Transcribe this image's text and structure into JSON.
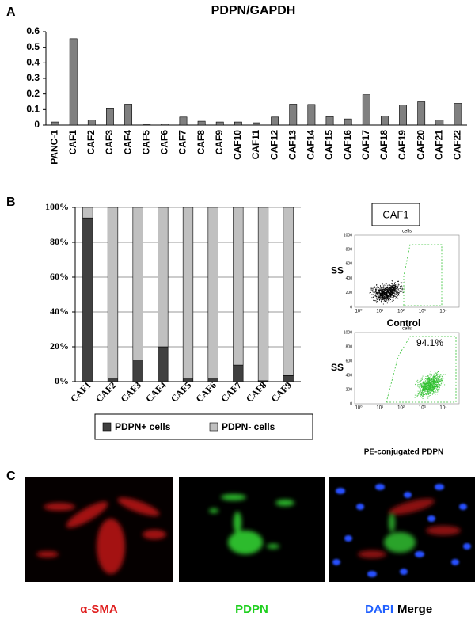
{
  "panel_labels": [
    "A",
    "B",
    "C"
  ],
  "chart_data": [
    {
      "type": "bar",
      "title": "PDPN/GAPDH",
      "categories": [
        "PANC-1",
        "CAF1",
        "CAF2",
        "CAF3",
        "CAF4",
        "CAF5",
        "CAF6",
        "CAF7",
        "CAF8",
        "CAF9",
        "CAF10",
        "CAF11",
        "CAF12",
        "CAF13",
        "CAF14",
        "CAF15",
        "CAF16",
        "CAF17",
        "CAF18",
        "CAF19",
        "CAF20",
        "CAF21",
        "CAF22"
      ],
      "values": [
        0.02,
        0.555,
        0.032,
        0.105,
        0.135,
        0.005,
        0.008,
        0.052,
        0.025,
        0.02,
        0.02,
        0.015,
        0.052,
        0.135,
        0.133,
        0.055,
        0.04,
        0.195,
        0.058,
        0.13,
        0.15,
        0.032,
        0.14
      ],
      "color": "#808080",
      "ylim": [
        0,
        0.6
      ],
      "yticks": [
        0,
        0.1,
        0.2,
        0.3,
        0.4,
        0.5,
        0.6
      ],
      "grid": false
    },
    {
      "type": "stacked_bar",
      "categories": [
        "CAF1",
        "CAF2",
        "CAF3",
        "CAF4",
        "CAF5",
        "CAF6",
        "CAF7",
        "CAF8",
        "CAF9"
      ],
      "series": [
        {
          "name": "PDPN+ cells",
          "color": "#404040",
          "values": [
            94,
            2,
            12,
            20,
            2,
            2,
            9.5,
            0.5,
            3.5
          ]
        },
        {
          "name": "PDPN- cells",
          "color": "#c0c0c0",
          "values": [
            6,
            98,
            88,
            80,
            98,
            98,
            90.5,
            99.5,
            96.5
          ]
        }
      ],
      "ylim": [
        0,
        100
      ],
      "yticks": [
        {
          "value": 0,
          "label": "0%"
        },
        {
          "value": 20,
          "label": "20%"
        },
        {
          "value": 40,
          "label": "40%"
        },
        {
          "value": 60,
          "label": "60%"
        },
        {
          "value": 80,
          "label": "80%"
        },
        {
          "value": 100,
          "label": "100%"
        }
      ],
      "grid": true,
      "legend": "bottom"
    }
  ],
  "flow_cytometry": {
    "title": "CAF1",
    "ylabel": "SS",
    "ylim": [
      0,
      1000
    ],
    "yticks": [
      0,
      200,
      400,
      600,
      800,
      1000
    ],
    "xticks": [
      "10⁰",
      "10¹",
      "10²",
      "10³",
      "10⁴"
    ],
    "plots": [
      {
        "header": "cells",
        "xlabel": "Control"
      },
      {
        "header": "cells",
        "annotation": "94.1%",
        "xlabel": "PE-conjugated PDPN"
      }
    ]
  },
  "microscopy": {
    "labels": [
      "α-SMA",
      "PDPN",
      "DAPI",
      "Merge"
    ]
  }
}
